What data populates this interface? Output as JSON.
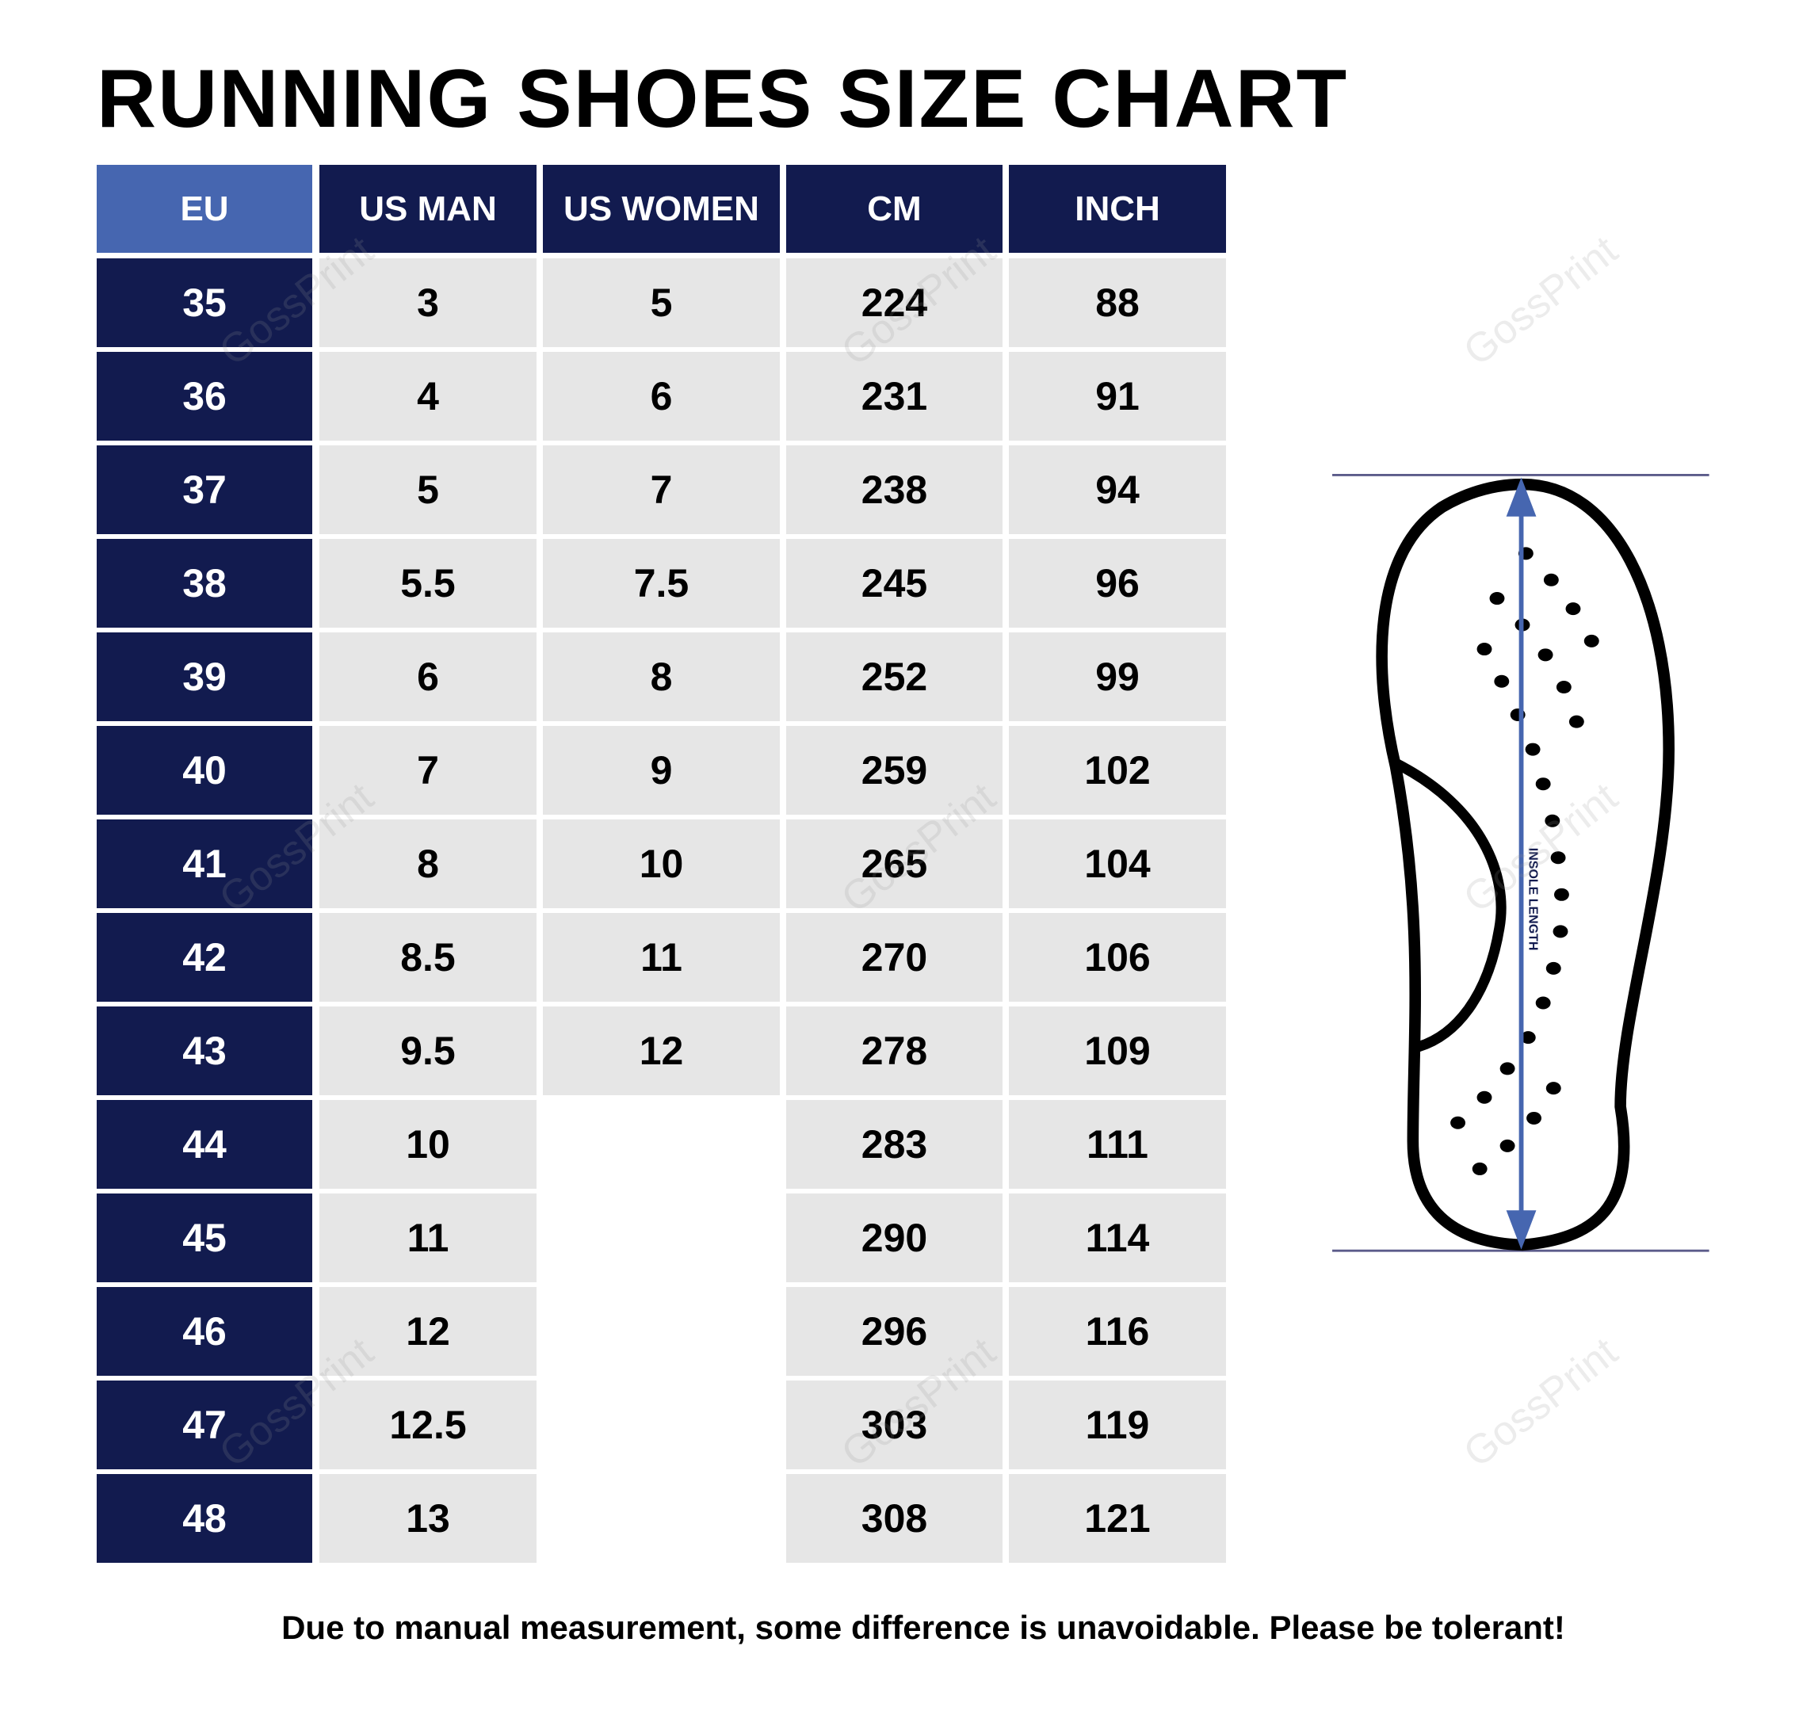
{
  "title": "RUNNING SHOES SIZE CHART",
  "table": {
    "headers": [
      "EU",
      "US MAN",
      "US WOMEN",
      "CM",
      "INCH"
    ],
    "rows": [
      [
        "35",
        "3",
        "5",
        "224",
        "88"
      ],
      [
        "36",
        "4",
        "6",
        "231",
        "91"
      ],
      [
        "37",
        "5",
        "7",
        "238",
        "94"
      ],
      [
        "38",
        "5.5",
        "7.5",
        "245",
        "96"
      ],
      [
        "39",
        "6",
        "8",
        "252",
        "99"
      ],
      [
        "40",
        "7",
        "9",
        "259",
        "102"
      ],
      [
        "41",
        "8",
        "10",
        "265",
        "104"
      ],
      [
        "42",
        "8.5",
        "11",
        "270",
        "106"
      ],
      [
        "43",
        "9.5",
        "12",
        "278",
        "109"
      ],
      [
        "44",
        "10",
        "",
        "283",
        "111"
      ],
      [
        "45",
        "11",
        "",
        "290",
        "114"
      ],
      [
        "46",
        "12",
        "",
        "296",
        "116"
      ],
      [
        "47",
        "12.5",
        "",
        "303",
        "119"
      ],
      [
        "48",
        "13",
        "",
        "308",
        "121"
      ]
    ]
  },
  "diagram": {
    "label": "INSOLE LENGTH",
    "arrow_color": "#4666b0",
    "line_color": "#5b5b8a"
  },
  "footer": "Due to manual measurement, some difference is unavoidable. Please be tolerant!",
  "watermark": "GossPrint",
  "colors": {
    "header_dark": "#121b4f",
    "header_accent": "#4666b0",
    "cell_bg": "#e6e6e6"
  }
}
